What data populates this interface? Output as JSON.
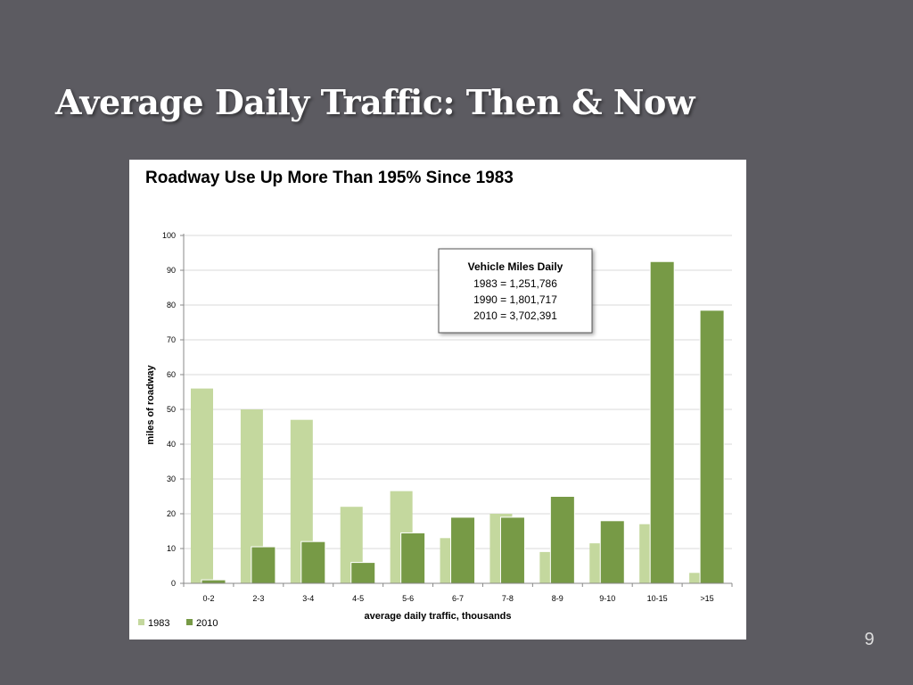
{
  "slide": {
    "title": "Average Daily Traffic: Then & Now",
    "page_number": "9"
  },
  "colors": {
    "background": "#5c5b61",
    "series_1983": "#c4d89e",
    "series_2010": "#779a46",
    "grid": "#d9d9d9"
  },
  "chart_data": {
    "type": "bar",
    "title": "Roadway Use Up More Than 195% Since 1983",
    "xlabel": "average daily traffic, thousands",
    "ylabel": "miles of roadway",
    "ylim": [
      0,
      100
    ],
    "yticks": [
      0,
      10,
      20,
      30,
      40,
      50,
      60,
      70,
      80,
      90,
      100
    ],
    "grid": true,
    "legend_position": "bottom-left",
    "categories": [
      "0-2",
      "2-3",
      "3-4",
      "4-5",
      "5-6",
      "6-7",
      "7-8",
      "8-9",
      "9-10",
      "10-15",
      ">15"
    ],
    "series": [
      {
        "name": "1983",
        "color": "#c4d89e",
        "values": [
          56,
          50,
          47,
          22,
          26.5,
          13,
          20,
          9,
          11.5,
          17,
          3
        ]
      },
      {
        "name": "2010",
        "color": "#779a46",
        "values": [
          1,
          10.5,
          12,
          6,
          14.5,
          19,
          19,
          25,
          18,
          92.5,
          78.5
        ]
      }
    ],
    "annotation": {
      "heading": "Vehicle Miles Daily",
      "lines": [
        "1983 = 1,251,786",
        "1990 = 1,801,717",
        "2010 = 3,702,391"
      ]
    }
  }
}
